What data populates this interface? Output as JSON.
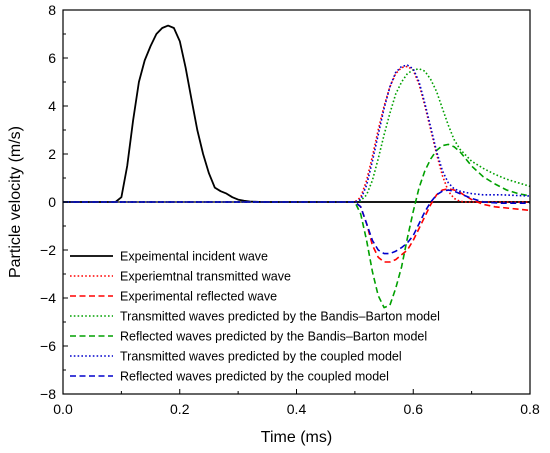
{
  "chart_data": {
    "type": "line",
    "title": "",
    "xlabel": "Time (ms)",
    "ylabel": "Particle velocity (m/s)",
    "xlim": [
      0.0,
      0.8
    ],
    "ylim": [
      -8,
      8
    ],
    "xticks": [
      0.0,
      0.2,
      0.4,
      0.6,
      0.8
    ],
    "xtick_labels": [
      "0.0",
      "0.2",
      "0.4",
      "0.6",
      "0.8"
    ],
    "yticks": [
      -8,
      -6,
      -4,
      -2,
      0,
      2,
      4,
      6,
      8
    ],
    "ytick_labels": [
      "−8",
      "−6",
      "−4",
      "−2",
      "0",
      "2",
      "4",
      "6",
      "8"
    ],
    "grid": false,
    "legend_position": "bottom-left",
    "series": [
      {
        "name": "Expeimental incident wave",
        "color": "#000000",
        "style": "solid",
        "x": [
          0,
          0.09,
          0.1,
          0.11,
          0.12,
          0.13,
          0.14,
          0.15,
          0.16,
          0.17,
          0.18,
          0.19,
          0.2,
          0.21,
          0.22,
          0.23,
          0.24,
          0.25,
          0.26,
          0.27,
          0.28,
          0.29,
          0.3,
          0.31,
          0.32,
          0.34,
          0.8
        ],
        "y": [
          0,
          0,
          0.2,
          1.5,
          3.4,
          5.0,
          5.9,
          6.5,
          7.0,
          7.25,
          7.35,
          7.25,
          6.7,
          5.6,
          4.3,
          3.0,
          2.0,
          1.2,
          0.6,
          0.45,
          0.35,
          0.2,
          0.1,
          0.05,
          0.02,
          0,
          0
        ]
      },
      {
        "name": "Experiemtnal transmitted wave",
        "color": "#ff0000",
        "style": "dotted",
        "x": [
          0,
          0.5,
          0.51,
          0.52,
          0.53,
          0.54,
          0.55,
          0.56,
          0.57,
          0.58,
          0.59,
          0.6,
          0.61,
          0.62,
          0.63,
          0.64,
          0.65,
          0.66,
          0.67,
          0.68,
          0.69,
          0.7,
          0.72,
          0.75,
          0.8
        ],
        "y": [
          0,
          0,
          0.2,
          0.9,
          1.9,
          3.0,
          4.0,
          4.8,
          5.35,
          5.6,
          5.65,
          5.5,
          4.9,
          4.0,
          3.0,
          2.0,
          1.1,
          0.45,
          0.15,
          0.03,
          0,
          0,
          0,
          0,
          0
        ]
      },
      {
        "name": "Experimental reflected wave",
        "color": "#ff0000",
        "style": "dashed",
        "x": [
          0,
          0.5,
          0.51,
          0.52,
          0.53,
          0.54,
          0.55,
          0.56,
          0.57,
          0.58,
          0.59,
          0.6,
          0.61,
          0.62,
          0.63,
          0.64,
          0.65,
          0.66,
          0.67,
          0.68,
          0.7,
          0.72,
          0.74,
          0.76,
          0.78,
          0.8
        ],
        "y": [
          0,
          0,
          -0.2,
          -0.9,
          -1.8,
          -2.3,
          -2.5,
          -2.5,
          -2.4,
          -2.2,
          -2.0,
          -1.6,
          -1.1,
          -0.6,
          -0.1,
          0.3,
          0.5,
          0.55,
          0.5,
          0.4,
          0.1,
          -0.1,
          -0.2,
          -0.25,
          -0.3,
          -0.35
        ]
      },
      {
        "name": "Transmitted waves predicted by the Bandis–Barton model",
        "color": "#00a000",
        "style": "dotted",
        "x": [
          0,
          0.5,
          0.51,
          0.52,
          0.53,
          0.54,
          0.55,
          0.56,
          0.57,
          0.58,
          0.59,
          0.6,
          0.61,
          0.62,
          0.63,
          0.64,
          0.65,
          0.66,
          0.67,
          0.68,
          0.7,
          0.72,
          0.74,
          0.76,
          0.78,
          0.8
        ],
        "y": [
          0,
          0,
          0.05,
          0.3,
          0.9,
          1.8,
          2.8,
          3.7,
          4.5,
          5.0,
          5.35,
          5.5,
          5.55,
          5.45,
          5.1,
          4.6,
          3.9,
          3.2,
          2.6,
          2.2,
          1.7,
          1.4,
          1.15,
          0.95,
          0.8,
          0.65
        ]
      },
      {
        "name": "Reflected waves predicted by the Bandis–Barton model",
        "color": "#00a000",
        "style": "dashed",
        "x": [
          0,
          0.5,
          0.51,
          0.52,
          0.53,
          0.54,
          0.55,
          0.56,
          0.57,
          0.58,
          0.59,
          0.6,
          0.61,
          0.62,
          0.63,
          0.64,
          0.65,
          0.66,
          0.67,
          0.68,
          0.69,
          0.7,
          0.72,
          0.74,
          0.76,
          0.78,
          0.8
        ],
        "y": [
          0,
          0,
          -0.5,
          -1.6,
          -2.9,
          -3.9,
          -4.4,
          -4.3,
          -3.6,
          -2.7,
          -1.5,
          -0.4,
          0.6,
          1.3,
          1.8,
          2.15,
          2.35,
          2.4,
          2.3,
          2.1,
          1.8,
          1.5,
          1.05,
          0.75,
          0.5,
          0.35,
          0.25
        ]
      },
      {
        "name": "Transmitted waves predicted by the coupled model",
        "color": "#0000cc",
        "style": "dotted",
        "x": [
          0,
          0.5,
          0.51,
          0.52,
          0.53,
          0.54,
          0.55,
          0.56,
          0.57,
          0.58,
          0.59,
          0.6,
          0.61,
          0.62,
          0.63,
          0.64,
          0.65,
          0.66,
          0.67,
          0.68,
          0.7,
          0.72,
          0.75,
          0.8
        ],
        "y": [
          0,
          0,
          0.1,
          0.7,
          1.7,
          2.8,
          3.9,
          4.8,
          5.4,
          5.65,
          5.7,
          5.55,
          5.0,
          4.1,
          3.1,
          2.1,
          1.3,
          0.8,
          0.55,
          0.45,
          0.35,
          0.3,
          0.3,
          0.25
        ]
      },
      {
        "name": "Reflected waves predicted by the coupled model",
        "color": "#0000cc",
        "style": "dashed",
        "x": [
          0,
          0.5,
          0.51,
          0.52,
          0.53,
          0.54,
          0.55,
          0.56,
          0.57,
          0.58,
          0.59,
          0.6,
          0.61,
          0.62,
          0.63,
          0.64,
          0.65,
          0.66,
          0.67,
          0.68,
          0.7,
          0.72,
          0.75,
          0.8
        ],
        "y": [
          0,
          0,
          -0.2,
          -0.9,
          -1.6,
          -2.0,
          -2.15,
          -2.15,
          -2.05,
          -1.9,
          -1.7,
          -1.4,
          -0.9,
          -0.4,
          0.0,
          0.3,
          0.45,
          0.5,
          0.45,
          0.35,
          0.15,
          0.0,
          -0.05,
          -0.05
        ]
      }
    ]
  }
}
